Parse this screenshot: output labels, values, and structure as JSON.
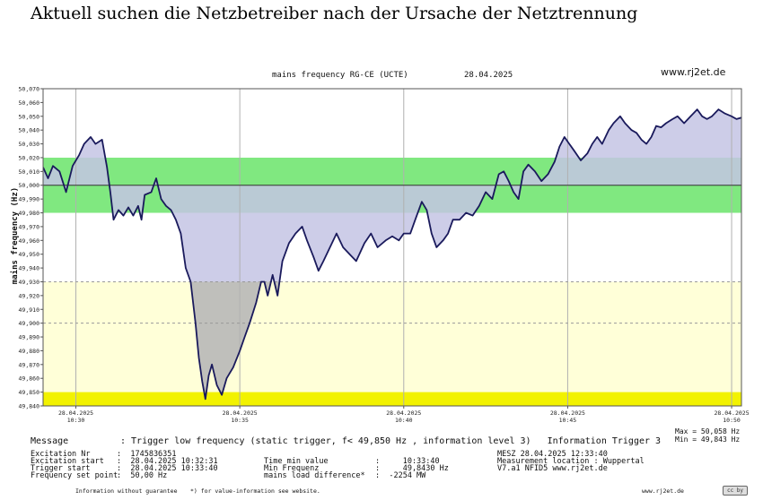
{
  "headline": "Aktuell suchen die Netzbetreiber nach der Ursache der Netztrennung",
  "chart_header": {
    "title": "mains frequency RG-CE (UCTE)",
    "date": "28.04.2025",
    "site": "www.rj2et.de"
  },
  "chart_data": {
    "type": "area",
    "title": "mains frequency RG-CE (UCTE)",
    "ylabel": "mains frequency (Hz)",
    "xlabel": "",
    "ylim": [
      49.84,
      50.07
    ],
    "xlim": [
      -1.0,
      20.3
    ],
    "y_ticks": [
      "50,070",
      "50,060",
      "50,050",
      "50,040",
      "50,030",
      "50,020",
      "50,010",
      "50,000",
      "49,990",
      "49,980",
      "49,970",
      "49,960",
      "49,950",
      "49,940",
      "49,930",
      "49,920",
      "49,910",
      "49,900",
      "49,890",
      "49,880",
      "49,870",
      "49,860",
      "49,850",
      "49,840"
    ],
    "x_ticks": [
      {
        "date": "28.04.2025",
        "time": "10:30"
      },
      {
        "date": "28.04.2025",
        "time": "10:35"
      },
      {
        "date": "28.04.2025",
        "time": "10:40"
      },
      {
        "date": "28.04.2025",
        "time": "10:45"
      },
      {
        "date": "28.04.2025",
        "time": "10:50"
      }
    ],
    "x_tick_minutes": [
      0,
      5,
      10,
      15,
      20
    ],
    "x_unit": "minutes after 10:30",
    "setpoint": 50.0,
    "bands": [
      {
        "from": 49.98,
        "to": 50.02,
        "color": "#80e880"
      },
      {
        "from": 49.85,
        "to": 49.93,
        "color": "#ffffd8"
      },
      {
        "from": 49.84,
        "to": 49.85,
        "color": "#f2f200"
      }
    ],
    "dashed_levels": [
      49.93,
      49.9
    ],
    "fill_above_color": "#c4c4e4",
    "fill_below_color": "#b8b8b8",
    "line_color": "#1a1a5c",
    "points": [
      [
        -1.0,
        50.013
      ],
      [
        -0.85,
        50.005
      ],
      [
        -0.7,
        50.014
      ],
      [
        -0.5,
        50.01
      ],
      [
        -0.3,
        49.995
      ],
      [
        -0.1,
        50.014
      ],
      [
        0.1,
        50.022
      ],
      [
        0.25,
        50.03
      ],
      [
        0.45,
        50.035
      ],
      [
        0.6,
        50.03
      ],
      [
        0.8,
        50.033
      ],
      [
        0.95,
        50.013
      ],
      [
        1.05,
        49.995
      ],
      [
        1.15,
        49.975
      ],
      [
        1.3,
        49.982
      ],
      [
        1.45,
        49.978
      ],
      [
        1.6,
        49.984
      ],
      [
        1.75,
        49.978
      ],
      [
        1.9,
        49.985
      ],
      [
        2.0,
        49.975
      ],
      [
        2.1,
        49.993
      ],
      [
        2.3,
        49.995
      ],
      [
        2.45,
        50.005
      ],
      [
        2.6,
        49.99
      ],
      [
        2.75,
        49.985
      ],
      [
        2.9,
        49.982
      ],
      [
        3.05,
        49.975
      ],
      [
        3.2,
        49.965
      ],
      [
        3.35,
        49.94
      ],
      [
        3.5,
        49.93
      ],
      [
        3.65,
        49.9
      ],
      [
        3.75,
        49.875
      ],
      [
        3.85,
        49.858
      ],
      [
        3.95,
        49.845
      ],
      [
        4.05,
        49.862
      ],
      [
        4.15,
        49.87
      ],
      [
        4.3,
        49.855
      ],
      [
        4.45,
        49.848
      ],
      [
        4.6,
        49.86
      ],
      [
        4.8,
        49.868
      ],
      [
        5.0,
        49.88
      ],
      [
        5.15,
        49.89
      ],
      [
        5.3,
        49.9
      ],
      [
        5.5,
        49.915
      ],
      [
        5.65,
        49.93
      ],
      [
        5.75,
        49.93
      ],
      [
        5.85,
        49.92
      ],
      [
        6.0,
        49.935
      ],
      [
        6.15,
        49.92
      ],
      [
        6.3,
        49.945
      ],
      [
        6.5,
        49.958
      ],
      [
        6.7,
        49.965
      ],
      [
        6.9,
        49.97
      ],
      [
        7.05,
        49.96
      ],
      [
        7.25,
        49.948
      ],
      [
        7.4,
        49.938
      ],
      [
        7.55,
        49.945
      ],
      [
        7.75,
        49.955
      ],
      [
        7.95,
        49.965
      ],
      [
        8.15,
        49.955
      ],
      [
        8.35,
        49.95
      ],
      [
        8.55,
        49.945
      ],
      [
        8.8,
        49.958
      ],
      [
        9.0,
        49.965
      ],
      [
        9.2,
        49.955
      ],
      [
        9.45,
        49.96
      ],
      [
        9.65,
        49.963
      ],
      [
        9.85,
        49.96
      ],
      [
        10.0,
        49.965
      ],
      [
        10.2,
        49.965
      ],
      [
        10.35,
        49.975
      ],
      [
        10.55,
        49.988
      ],
      [
        10.7,
        49.982
      ],
      [
        10.85,
        49.965
      ],
      [
        11.0,
        49.955
      ],
      [
        11.2,
        49.96
      ],
      [
        11.35,
        49.965
      ],
      [
        11.5,
        49.975
      ],
      [
        11.7,
        49.975
      ],
      [
        11.9,
        49.98
      ],
      [
        12.1,
        49.978
      ],
      [
        12.3,
        49.985
      ],
      [
        12.5,
        49.995
      ],
      [
        12.7,
        49.99
      ],
      [
        12.9,
        50.008
      ],
      [
        13.05,
        50.01
      ],
      [
        13.2,
        50.003
      ],
      [
        13.35,
        49.995
      ],
      [
        13.5,
        49.99
      ],
      [
        13.65,
        50.01
      ],
      [
        13.8,
        50.015
      ],
      [
        14.0,
        50.01
      ],
      [
        14.2,
        50.003
      ],
      [
        14.4,
        50.008
      ],
      [
        14.6,
        50.017
      ],
      [
        14.75,
        50.028
      ],
      [
        14.9,
        50.035
      ],
      [
        15.05,
        50.03
      ],
      [
        15.2,
        50.025
      ],
      [
        15.4,
        50.018
      ],
      [
        15.6,
        50.023
      ],
      [
        15.75,
        50.03
      ],
      [
        15.9,
        50.035
      ],
      [
        16.05,
        50.03
      ],
      [
        16.25,
        50.04
      ],
      [
        16.4,
        50.045
      ],
      [
        16.6,
        50.05
      ],
      [
        16.75,
        50.045
      ],
      [
        16.95,
        50.04
      ],
      [
        17.1,
        50.038
      ],
      [
        17.25,
        50.033
      ],
      [
        17.4,
        50.03
      ],
      [
        17.55,
        50.035
      ],
      [
        17.7,
        50.043
      ],
      [
        17.85,
        50.042
      ],
      [
        18.0,
        50.045
      ],
      [
        18.2,
        50.048
      ],
      [
        18.35,
        50.05
      ],
      [
        18.55,
        50.045
      ],
      [
        18.75,
        50.05
      ],
      [
        18.95,
        50.055
      ],
      [
        19.1,
        50.05
      ],
      [
        19.25,
        50.048
      ],
      [
        19.4,
        50.05
      ],
      [
        19.6,
        50.055
      ],
      [
        19.8,
        50.052
      ],
      [
        20.0,
        50.05
      ],
      [
        20.15,
        50.048
      ],
      [
        20.3,
        50.049
      ]
    ]
  },
  "stats": {
    "max": "Max = 50,058 Hz",
    "min": "Min = 49,843 Hz"
  },
  "message": {
    "label": "Message",
    "text": ": Trigger low frequency (static trigger, f< 49,850 Hz , information level 3)   Information Trigger 3"
  },
  "info": {
    "col1": [
      {
        "label": "Excitation Nr",
        "value": ":  1745836351"
      },
      {
        "label": "Excitation start",
        "value": ":  28.04.2025 10:32:31"
      },
      {
        "label": "Trigger start",
        "value": ":  28.04.2025 10:33:40"
      },
      {
        "label": "Frequency set point",
        "value": ":  50,00 Hz"
      }
    ],
    "col2": [
      {
        "label": "Time min value",
        "value": ":     10:33:40"
      },
      {
        "label": "Min Frequenz",
        "value": ":     49,8430 Hz"
      },
      {
        "label": "mains load difference*",
        "value": ":  -2254 MW"
      }
    ],
    "col3": [
      "MESZ 28.04.2025 12:33:40",
      "Measurement location : Wuppertal",
      "V7.a1 NFID5 www.rj2et.de"
    ]
  },
  "footer": {
    "left": "Information without guarantee",
    "mid": "*) for value-information see website.",
    "site": "www.rj2et.de",
    "badge": "cc by"
  }
}
